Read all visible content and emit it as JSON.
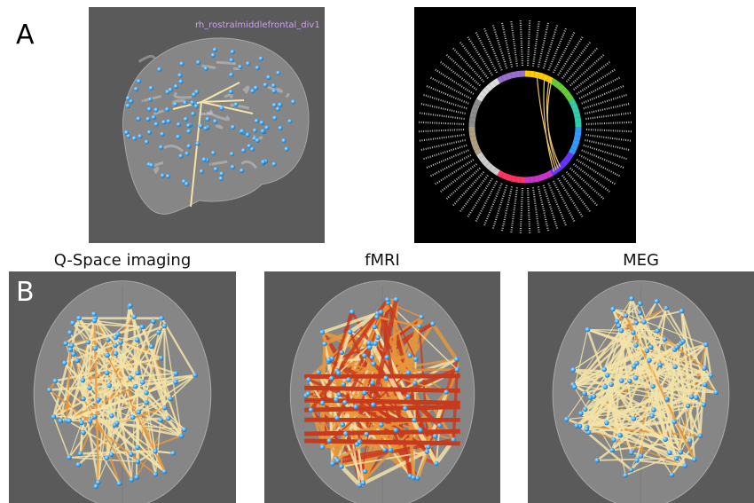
{
  "panels": {
    "a": {
      "letter": "A",
      "region_label": "rh_rostralmiddlefrontal_div1"
    },
    "b": {
      "letter": "B",
      "columns": [
        {
          "title": "Q-Space imaging"
        },
        {
          "title": "fMRI"
        },
        {
          "title": "MEG"
        }
      ]
    }
  },
  "colors": {
    "panel_gray": "#5a5a5a",
    "node": "#3fa9f5",
    "edge_pale": "#f3e3a8",
    "edge_orange": "#e8963a",
    "edge_red": "#c83a1e",
    "region_label": "#c9a2e8"
  }
}
